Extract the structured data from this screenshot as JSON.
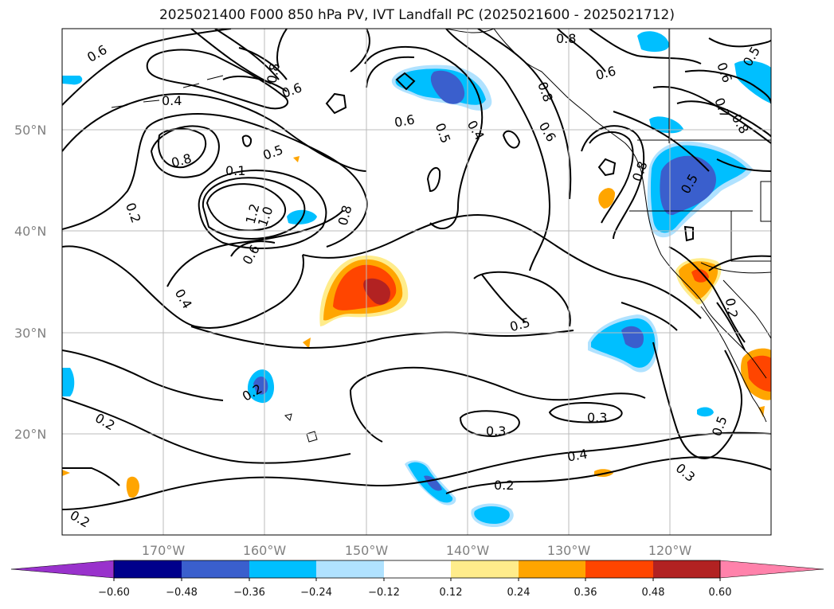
{
  "title": "2025021400 F000 850 hPa PV, IVT Landfall PC (2025021600 - 2025021712)",
  "axes": {
    "lat_labels": [
      "50°N",
      "40°N",
      "30°N",
      "20°N"
    ],
    "lon_labels": [
      "170°W",
      "160°W",
      "150°W",
      "140°W",
      "130°W",
      "120°W"
    ],
    "grid": true
  },
  "colorbar": {
    "ticks": [
      "−0.60",
      "−0.48",
      "−0.36",
      "−0.24",
      "−0.12",
      "0.12",
      "0.24",
      "0.36",
      "0.48",
      "0.60"
    ],
    "colors": {
      "below": "#9932cc",
      "b1": "#00008b",
      "b2": "#3a5fcd",
      "b3": "#00bfff",
      "b4": "#b0e2ff",
      "b5": "#ffffff",
      "b6": "#ffec8b",
      "b7": "#ffa500",
      "b8": "#ff4500",
      "b9": "#b22222",
      "above": "#ff82ab"
    }
  },
  "contour_labels": [
    "0.6",
    "0.4",
    "0.8",
    "0.6",
    "0.8",
    "0.6",
    "0.5",
    "0.4",
    "0.6",
    "0.8",
    "0.6",
    "0.5",
    "0.7",
    "0.8",
    "0.6",
    "0.8",
    "0.5",
    "0.5",
    "0.1",
    "0.2",
    "0.8",
    "1.0",
    "1.2",
    "0.8",
    "0.6",
    "0.4",
    "0.5",
    "0.2",
    "0.2",
    "0.3",
    "0.3",
    "0.4",
    "0.2",
    "0.3",
    "0.2",
    "0.5",
    "0.2"
  ]
}
